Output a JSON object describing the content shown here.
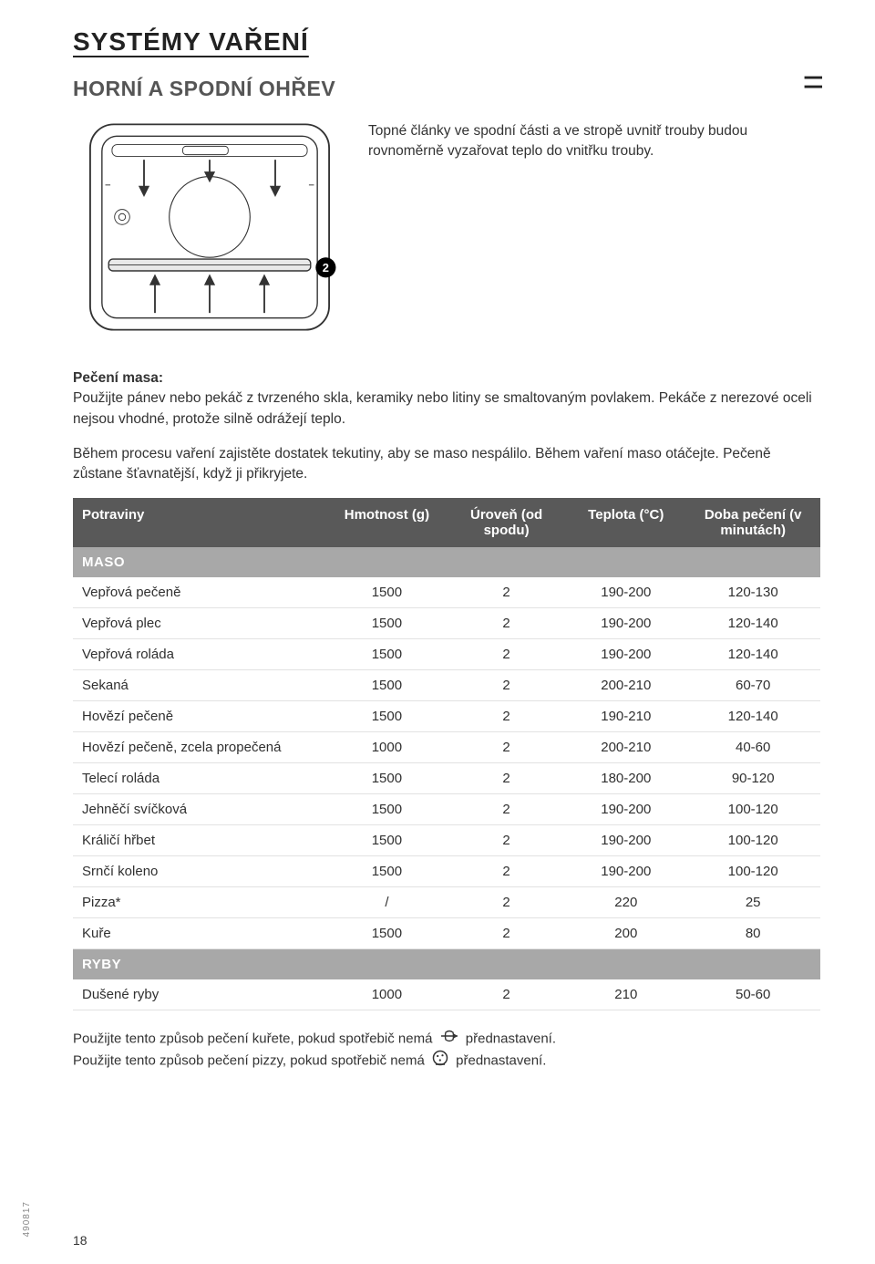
{
  "title": "SYSTÉMY VAŘENÍ",
  "subtitle": "HORNÍ A SPODNÍ OHŘEV",
  "mode_icon": "=",
  "intro": "Topné články ve spodní části a ve stropě uvnitř trouby budou rovnoměrně vyzařovat teplo do vnitřku trouby.",
  "para1_strong": "Pečení masa:",
  "para1_rest": "Použijte pánev nebo pekáč z tvrzeného skla, keramiky nebo litiny se smaltovaným povlakem. Pekáče z nerezové oceli nejsou vhodné, protože silně odrážejí teplo.",
  "para2": "Během procesu vaření zajistěte dostatek tekutiny, aby se maso nespálilo. Během vaření maso otáčejte. Pečeně zůstane šťavnatější, když ji přikryjete.",
  "headers": {
    "food": "Potraviny",
    "weight": "Hmotnost (g)",
    "level": "Úroveň (od spodu)",
    "temp": "Teplota (°C)",
    "time": "Doba pečení (v minutách)"
  },
  "sections": [
    {
      "label": "MASO",
      "rows": [
        {
          "food": "Vepřová pečeně",
          "weight": "1500",
          "level": "2",
          "temp": "190-200",
          "time": "120-130"
        },
        {
          "food": "Vepřová plec",
          "weight": "1500",
          "level": "2",
          "temp": "190-200",
          "time": "120-140"
        },
        {
          "food": "Vepřová roláda",
          "weight": "1500",
          "level": "2",
          "temp": "190-200",
          "time": "120-140"
        },
        {
          "food": "Sekaná",
          "weight": "1500",
          "level": "2",
          "temp": "200-210",
          "time": "60-70"
        },
        {
          "food": "Hovězí pečeně",
          "weight": "1500",
          "level": "2",
          "temp": "190-210",
          "time": "120-140"
        },
        {
          "food": "Hovězí pečeně, zcela propečená",
          "weight": "1000",
          "level": "2",
          "temp": "200-210",
          "time": "40-60"
        },
        {
          "food": "Telecí roláda",
          "weight": "1500",
          "level": "2",
          "temp": "180-200",
          "time": "90-120"
        },
        {
          "food": "Jehněčí svíčková",
          "weight": "1500",
          "level": "2",
          "temp": "190-200",
          "time": "100-120"
        },
        {
          "food": "Králičí hřbet",
          "weight": "1500",
          "level": "2",
          "temp": "190-200",
          "time": "100-120"
        },
        {
          "food": "Srnčí koleno",
          "weight": "1500",
          "level": "2",
          "temp": "190-200",
          "time": "100-120"
        },
        {
          "food": "Pizza*",
          "weight": "/",
          "level": "2",
          "temp": "220",
          "time": "25"
        },
        {
          "food": "Kuře",
          "weight": "1500",
          "level": "2",
          "temp": "200",
          "time": "80"
        }
      ]
    },
    {
      "label": "RYBY",
      "rows": [
        {
          "food": "Dušené ryby",
          "weight": "1000",
          "level": "2",
          "temp": "210",
          "time": "50-60"
        }
      ]
    }
  ],
  "footnotes": {
    "line1a": "Použijte tento způsob pečení kuřete, pokud spotřebič nemá ",
    "line1b": " přednastavení.",
    "line2a": "Použijte tento způsob pečení pizzy, pokud spotřebič nemá ",
    "line2b": " přednastavení."
  },
  "page_number": "18",
  "side_code": "490817",
  "oven_badge": "2",
  "colors": {
    "header_bg": "#595959",
    "section_bg": "#a8a8a8",
    "row_border": "#e2e2e2",
    "text": "#303030"
  }
}
